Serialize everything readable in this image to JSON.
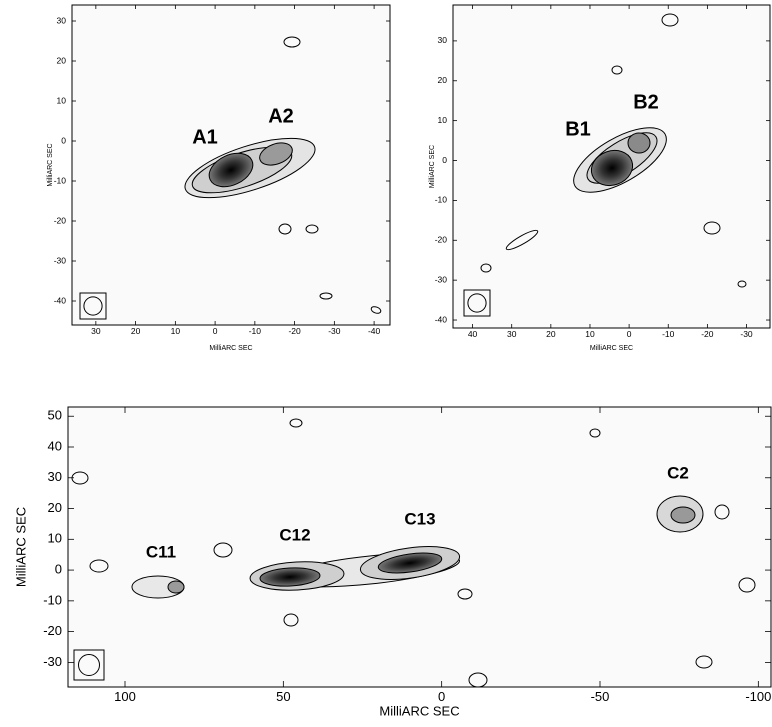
{
  "chart_data": [
    {
      "type": "contour",
      "x_label": "MilliARC SEC",
      "y_label": "MilliARC SEC",
      "annotations": [
        "A1",
        "A2"
      ],
      "xlim": [
        36,
        -44
      ],
      "ylim": [
        -46,
        34
      ],
      "xticks": [
        30,
        20,
        10,
        0,
        -10,
        -20,
        -30,
        -40
      ],
      "yticks": [
        -40,
        -30,
        -20,
        -10,
        0,
        10,
        20,
        30
      ]
    },
    {
      "type": "contour",
      "x_label": "MilliARC SEC",
      "y_label": "MilliARC SEC",
      "annotations": [
        "B1",
        "B2"
      ],
      "xlim": [
        45,
        -36
      ],
      "ylim": [
        -42,
        39
      ],
      "xticks": [
        40,
        30,
        20,
        10,
        0,
        -10,
        -20,
        -30
      ],
      "yticks": [
        -40,
        -30,
        -20,
        -10,
        0,
        10,
        20,
        30
      ]
    },
    {
      "type": "contour",
      "x_label": "MilliARC SEC",
      "y_label": "MilliARC SEC",
      "annotations": [
        "C11",
        "C12",
        "C13",
        "C2"
      ],
      "xlim": [
        118,
        -104
      ],
      "ylim": [
        -38,
        53
      ],
      "xticks": [
        100,
        50,
        0,
        -50,
        -100
      ],
      "yticks": [
        -30,
        -20,
        -10,
        0,
        10,
        20,
        30,
        40,
        50
      ]
    }
  ]
}
